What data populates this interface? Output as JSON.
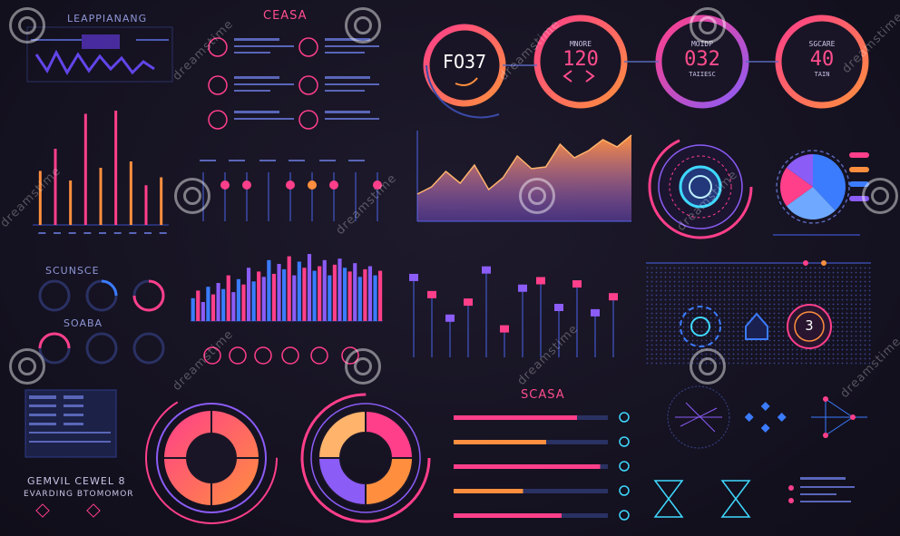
{
  "colors": {
    "pink": "#ff3f8a",
    "magenta": "#e2327d",
    "orange": "#ff8f3e",
    "blue": "#3b7cff",
    "purple": "#8b5cf6",
    "cyan": "#3fd9ff",
    "text": "#8e96d6"
  },
  "labels": {
    "top_left_title": "LEAPPIANANG",
    "top_mid_title": "CEASA",
    "gauge_section_1": "SCUNSCE",
    "gauge_section_2": "SOABA",
    "bars_title": "SCASA",
    "bottom_left_line1": "GEMVIL CEWEL 8",
    "bottom_left_line2": "EVARDING BTOMOMOR"
  },
  "rings": [
    {
      "value": "FO37",
      "sub": ""
    },
    {
      "value": "120",
      "sub": "MNORE"
    },
    {
      "value": "032",
      "sub": "MOIDP",
      "sub2": "TAIIESC"
    },
    {
      "value": "40",
      "sub": "SGCARE",
      "sub2": "TAIN"
    }
  ],
  "center_badge": {
    "value": "3"
  },
  "watermark": "dreamstime",
  "chart_data": [
    {
      "type": "bar",
      "values": [
        34,
        48,
        28,
        70,
        36,
        72,
        40,
        25,
        30
      ]
    },
    {
      "type": "area",
      "values": [
        30,
        38,
        55,
        42,
        62,
        35,
        48,
        72,
        58,
        60,
        85,
        70,
        78,
        90,
        82,
        95
      ]
    },
    {
      "type": "bar",
      "values": [
        30,
        40,
        25,
        45,
        35,
        50,
        42,
        60,
        38,
        55,
        48,
        70,
        52,
        65,
        58,
        80,
        62,
        75,
        68,
        85,
        60,
        78,
        70,
        88,
        66,
        72,
        80,
        60,
        74,
        82,
        70,
        65,
        76,
        58,
        68,
        72,
        60,
        66
      ]
    },
    {
      "type": "bar",
      "values": [
        78,
        62,
        40,
        55,
        85,
        30,
        68,
        75,
        50,
        72,
        45,
        60
      ]
    },
    {
      "type": "pie",
      "values": [
        38,
        27,
        20,
        15
      ]
    },
    {
      "type": "pie",
      "values": [
        25,
        25,
        25,
        25
      ]
    },
    {
      "type": "bar",
      "values": [
        80,
        60,
        95,
        45,
        70
      ]
    }
  ]
}
